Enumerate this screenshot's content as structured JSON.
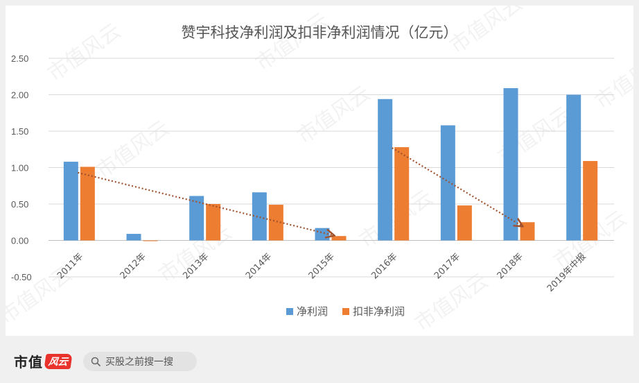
{
  "chart_data": {
    "type": "bar",
    "title": "赞宇科技净利润及扣非净利润情况（亿元）",
    "categories": [
      "2011年",
      "2012年",
      "2013年",
      "2014年",
      "2015年",
      "2016年",
      "2017年",
      "2018年",
      "2019年中报"
    ],
    "series": [
      {
        "name": "净利润",
        "color": "#5b9bd5",
        "values": [
          1.08,
          0.09,
          0.61,
          0.66,
          0.17,
          1.94,
          1.58,
          2.09,
          2.0
        ]
      },
      {
        "name": "扣非净利润",
        "color": "#ed7d31",
        "values": [
          1.01,
          -0.01,
          0.5,
          0.49,
          0.06,
          1.28,
          0.48,
          0.25,
          1.09
        ]
      }
    ],
    "yticks": [
      "2.50",
      "2.00",
      "1.50",
      "1.00",
      "0.50",
      "0.00",
      "-0.50"
    ],
    "ylim": [
      -0.5,
      2.5
    ],
    "grid": true,
    "legend_position": "bottom",
    "trend_arrows": [
      {
        "from": [
          "2011年",
          0.93
        ],
        "to": [
          "2015年",
          0.07
        ],
        "color": "#a0522d"
      },
      {
        "from": [
          "2016年",
          1.27
        ],
        "to": [
          "2018年",
          0.2
        ],
        "color": "#a0522d"
      }
    ],
    "watermark": "市值风云"
  },
  "footer": {
    "brand": "市值",
    "logo_text": "风云",
    "search_text": "买股之前搜一搜",
    "search_icon": "search-icon"
  }
}
